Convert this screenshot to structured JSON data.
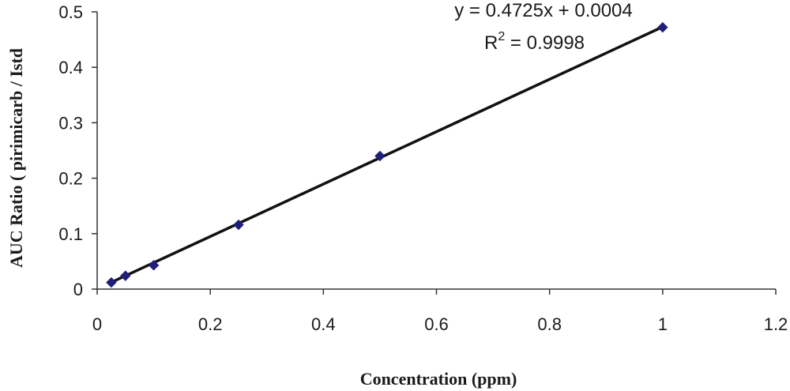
{
  "chart_data": {
    "type": "scatter",
    "title": "",
    "xlabel": "Concentration (ppm)",
    "ylabel": "AUC Ratio ( pirimicarb / Istd",
    "xlim": [
      0,
      1.2
    ],
    "ylim": [
      0,
      0.5
    ],
    "x_ticks": [
      "0",
      "0.2",
      "0.4",
      "0.6",
      "0.8",
      "1",
      "1.2"
    ],
    "y_ticks": [
      "0",
      "0.1",
      "0.2",
      "0.3",
      "0.4",
      "0.5"
    ],
    "grid": false,
    "series": [
      {
        "points": [
          {
            "x": 0.025,
            "y": 0.012
          },
          {
            "x": 0.05,
            "y": 0.024
          },
          {
            "x": 0.1,
            "y": 0.043
          },
          {
            "x": 0.25,
            "y": 0.116
          },
          {
            "x": 0.5,
            "y": 0.24
          },
          {
            "x": 1.0,
            "y": 0.472
          }
        ],
        "marker_color": "#1f1f7a"
      }
    ],
    "trendline": {
      "slope": 0.4725,
      "intercept": 0.0004,
      "x_range": [
        0.025,
        1.0
      ],
      "color": "#111111"
    },
    "annotations": {
      "equation": "y = 0.4725x + 0.0004",
      "r2_prefix": "R",
      "r2_sup": "2",
      "r2_suffix": " = 0.9998"
    }
  }
}
